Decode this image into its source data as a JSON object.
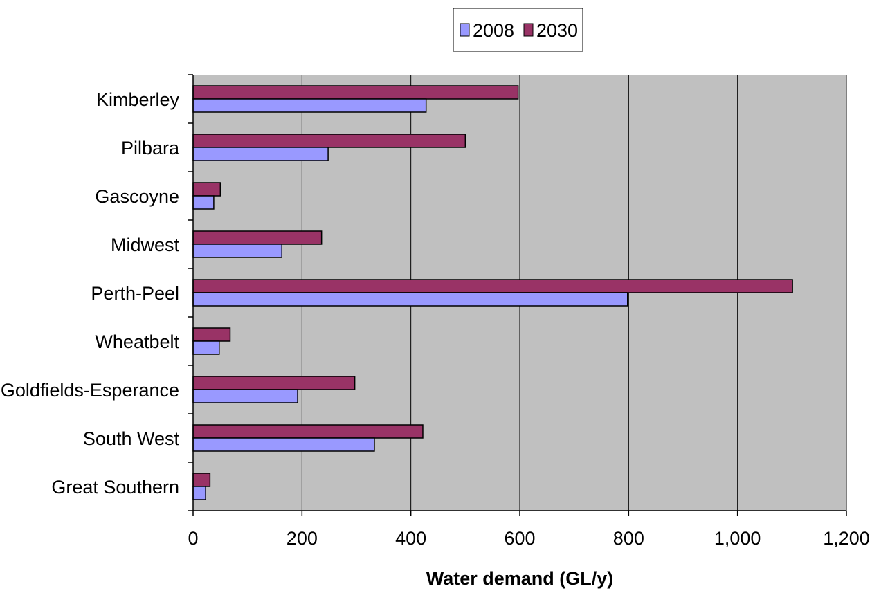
{
  "chart_data": {
    "type": "bar",
    "orientation": "horizontal",
    "categories": [
      "Kimberley",
      "Pilbara",
      "Gascoyne",
      "Midwest",
      "Perth-Peel",
      "Wheatbelt",
      "Goldfields-Esperance",
      "South West",
      "Great Southern"
    ],
    "series": [
      {
        "name": "2008",
        "color": "#9999ff",
        "values": [
          428,
          248,
          38,
          163,
          798,
          48,
          192,
          333,
          23
        ]
      },
      {
        "name": "2030",
        "color": "#993366",
        "values": [
          597,
          500,
          50,
          236,
          1101,
          68,
          297,
          422,
          31
        ]
      }
    ],
    "xlabel": "Water demand (GL/y)",
    "ylabel": "",
    "xlim": [
      0,
      1200
    ],
    "xticks": [
      0,
      200,
      400,
      600,
      800,
      1000,
      1200
    ],
    "xtick_labels": [
      "0",
      "200",
      "400",
      "600",
      "800",
      "1,000",
      "1,200"
    ],
    "grid": "vertical",
    "plot_background": "#c0c0c0",
    "legend_position": "top-center"
  }
}
